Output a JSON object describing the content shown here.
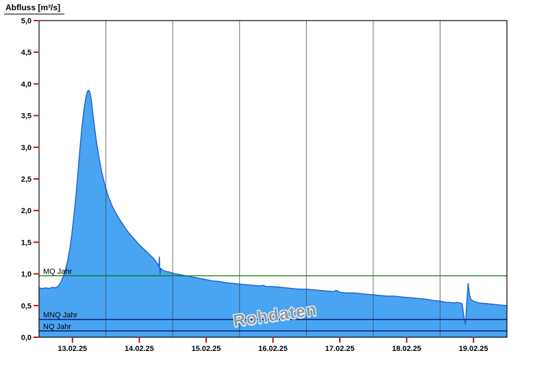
{
  "colors": {
    "area_fill": "#49a4f2",
    "area_stroke": "#1b5fd0",
    "grid": "#404040",
    "tick": "#dd0000",
    "border": "#000000",
    "label": "#000000"
  },
  "chart_data": {
    "type": "area",
    "title": "Abfluss [m³/s]",
    "xlabel": "",
    "ylabel": "Abfluss [m³/s]",
    "ylim": [
      0,
      5
    ],
    "x_range_days": [
      0,
      7
    ],
    "grid": "vertical-day-boundaries",
    "grid_days": [
      1,
      2,
      3,
      4,
      5,
      6
    ],
    "y_ticks": [
      {
        "value": 0,
        "label": "0,0"
      },
      {
        "value": 0.5,
        "label": "0,5"
      },
      {
        "value": 1,
        "label": "1,0"
      },
      {
        "value": 1.5,
        "label": "1,5"
      },
      {
        "value": 2,
        "label": "2,0"
      },
      {
        "value": 2.5,
        "label": "2,5"
      },
      {
        "value": 3,
        "label": "3,0"
      },
      {
        "value": 3.5,
        "label": "3,5"
      },
      {
        "value": 4,
        "label": "4,0"
      },
      {
        "value": 4.5,
        "label": "4,5"
      },
      {
        "value": 5,
        "label": "5,0"
      }
    ],
    "x_ticks": [
      {
        "t": 0.5,
        "label": "13.02.25"
      },
      {
        "t": 1.5,
        "label": "14.02.25"
      },
      {
        "t": 2.5,
        "label": "15.02.25"
      },
      {
        "t": 3.5,
        "label": "16.02.25"
      },
      {
        "t": 4.5,
        "label": "17.02.25"
      },
      {
        "t": 5.5,
        "label": "18.02.25"
      },
      {
        "t": 6.5,
        "label": "19.02.25"
      }
    ],
    "reference_lines": [
      {
        "label": "MQ Jahr",
        "value": 0.97,
        "color": "#007f00"
      },
      {
        "label": "MNQ Jahr",
        "value": 0.28,
        "color": "#000060"
      },
      {
        "label": "NQ Jahr",
        "value": 0.1,
        "color": "#000060"
      }
    ],
    "annotations": [
      {
        "text": "Rohdaten",
        "style": "watermark"
      }
    ],
    "series": [
      {
        "name": "Abfluss",
        "unit": "m³/s",
        "points": [
          [
            0,
            0.78
          ],
          [
            0.05,
            0.77
          ],
          [
            0.1,
            0.78
          ],
          [
            0.15,
            0.77
          ],
          [
            0.2,
            0.79
          ],
          [
            0.24,
            0.78
          ],
          [
            0.28,
            0.8
          ],
          [
            0.31,
            0.84
          ],
          [
            0.34,
            0.9
          ],
          [
            0.37,
            0.98
          ],
          [
            0.4,
            1.08
          ],
          [
            0.43,
            1.22
          ],
          [
            0.46,
            1.4
          ],
          [
            0.49,
            1.62
          ],
          [
            0.52,
            1.9
          ],
          [
            0.55,
            2.22
          ],
          [
            0.58,
            2.58
          ],
          [
            0.61,
            2.95
          ],
          [
            0.64,
            3.3
          ],
          [
            0.67,
            3.58
          ],
          [
            0.7,
            3.78
          ],
          [
            0.72,
            3.87
          ],
          [
            0.74,
            3.9
          ],
          [
            0.76,
            3.87
          ],
          [
            0.78,
            3.76
          ],
          [
            0.8,
            3.58
          ],
          [
            0.83,
            3.32
          ],
          [
            0.86,
            3.08
          ],
          [
            0.9,
            2.82
          ],
          [
            0.94,
            2.6
          ],
          [
            0.98,
            2.43
          ],
          [
            1.02,
            2.28
          ],
          [
            1.06,
            2.16
          ],
          [
            1.1,
            2.06
          ],
          [
            1.15,
            1.96
          ],
          [
            1.2,
            1.87
          ],
          [
            1.25,
            1.79
          ],
          [
            1.3,
            1.71
          ],
          [
            1.35,
            1.64
          ],
          [
            1.4,
            1.58
          ],
          [
            1.45,
            1.52
          ],
          [
            1.5,
            1.46
          ],
          [
            1.55,
            1.41
          ],
          [
            1.6,
            1.36
          ],
          [
            1.65,
            1.31
          ],
          [
            1.7,
            1.26
          ],
          [
            1.74,
            1.21
          ],
          [
            1.77,
            1.16
          ],
          [
            1.79,
            1.12
          ],
          [
            1.8,
            1.27
          ],
          [
            1.81,
            0.99
          ],
          [
            1.82,
            1.09
          ],
          [
            1.85,
            1.06
          ],
          [
            1.9,
            1.04
          ],
          [
            1.95,
            1.03
          ],
          [
            2,
            1.01
          ],
          [
            2.05,
            1
          ],
          [
            2.1,
            0.99
          ],
          [
            2.15,
            0.98
          ],
          [
            2.2,
            0.97
          ],
          [
            2.25,
            0.96
          ],
          [
            2.3,
            0.95
          ],
          [
            2.35,
            0.94
          ],
          [
            2.4,
            0.93
          ],
          [
            2.45,
            0.92
          ],
          [
            2.5,
            0.91
          ],
          [
            2.6,
            0.89
          ],
          [
            2.7,
            0.88
          ],
          [
            2.8,
            0.86
          ],
          [
            2.9,
            0.85
          ],
          [
            3,
            0.84
          ],
          [
            3.1,
            0.83
          ],
          [
            3.2,
            0.82
          ],
          [
            3.3,
            0.81
          ],
          [
            3.35,
            0.82
          ],
          [
            3.4,
            0.8
          ],
          [
            3.5,
            0.8
          ],
          [
            3.6,
            0.79
          ],
          [
            3.7,
            0.78
          ],
          [
            3.8,
            0.77
          ],
          [
            3.9,
            0.76
          ],
          [
            4,
            0.76
          ],
          [
            4.1,
            0.75
          ],
          [
            4.2,
            0.74
          ],
          [
            4.3,
            0.73
          ],
          [
            4.4,
            0.72
          ],
          [
            4.45,
            0.74
          ],
          [
            4.5,
            0.71
          ],
          [
            4.6,
            0.7
          ],
          [
            4.7,
            0.7
          ],
          [
            4.8,
            0.69
          ],
          [
            4.9,
            0.68
          ],
          [
            5,
            0.67
          ],
          [
            5.1,
            0.66
          ],
          [
            5.2,
            0.65
          ],
          [
            5.3,
            0.65
          ],
          [
            5.4,
            0.64
          ],
          [
            5.5,
            0.63
          ],
          [
            5.6,
            0.62
          ],
          [
            5.7,
            0.61
          ],
          [
            5.8,
            0.6
          ],
          [
            5.85,
            0.59
          ],
          [
            5.9,
            0.58
          ],
          [
            6,
            0.57
          ],
          [
            6.05,
            0.56
          ],
          [
            6.1,
            0.55
          ],
          [
            6.15,
            0.55
          ],
          [
            6.2,
            0.54
          ],
          [
            6.25,
            0.55
          ],
          [
            6.3,
            0.54
          ],
          [
            6.33,
            0.53
          ],
          [
            6.36,
            0.3
          ],
          [
            6.38,
            0.2
          ],
          [
            6.4,
            0.56
          ],
          [
            6.42,
            0.85
          ],
          [
            6.44,
            0.67
          ],
          [
            6.46,
            0.6
          ],
          [
            6.5,
            0.57
          ],
          [
            6.55,
            0.55
          ],
          [
            6.6,
            0.54
          ],
          [
            6.7,
            0.53
          ],
          [
            6.8,
            0.52
          ],
          [
            6.9,
            0.51
          ],
          [
            7,
            0.5
          ]
        ]
      }
    ]
  }
}
